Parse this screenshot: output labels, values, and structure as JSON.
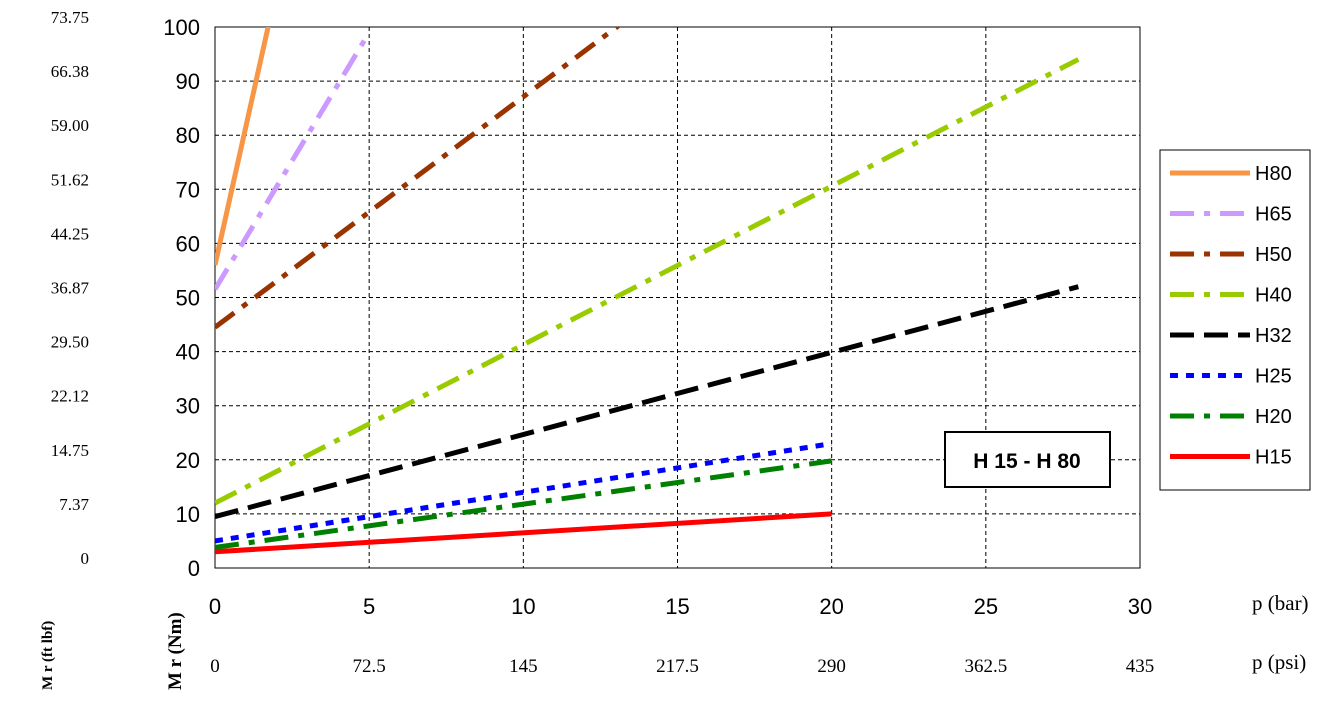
{
  "chart_data": {
    "type": "line",
    "inset_label": "H 15 - H 80",
    "x": {
      "label": "p (bar)",
      "range": [
        0,
        30
      ],
      "ticks": [
        "0",
        "5",
        "10",
        "15",
        "20",
        "25",
        "30"
      ],
      "secondary_label": "p (psi)",
      "secondary_ticks": [
        "0",
        "72.5",
        "145",
        "217.5",
        "290",
        "362.5",
        "435"
      ]
    },
    "y": {
      "label": "M r (Nm)",
      "range": [
        0,
        100
      ],
      "ticks": [
        "0",
        "10",
        "20",
        "30",
        "40",
        "50",
        "60",
        "70",
        "80",
        "90",
        "100"
      ],
      "secondary_label": "M r (ft lbf)",
      "secondary_ticks": [
        "0",
        "7.37",
        "14.75",
        "22.12",
        "29.50",
        "36.87",
        "44.25",
        "51.62",
        "59.00",
        "66.38",
        "73.75"
      ]
    },
    "grid": true,
    "legend_position": "right",
    "series": [
      {
        "name": "H80",
        "color": "#f79646",
        "dash": "solid",
        "x": [
          0,
          1.8
        ],
        "y": [
          56,
          102
        ]
      },
      {
        "name": "H65",
        "color": "#cc99ff",
        "dash": "dashdot",
        "x": [
          0,
          5
        ],
        "y": [
          51.5,
          99
        ]
      },
      {
        "name": "H50",
        "color": "#993300",
        "dash": "dashdot",
        "x": [
          0,
          13.5
        ],
        "y": [
          44.5,
          102
        ]
      },
      {
        "name": "H40",
        "color": "#99cc00",
        "dash": "dashdot",
        "x": [
          0,
          28
        ],
        "y": [
          12,
          94
        ]
      },
      {
        "name": "H32",
        "color": "#000000",
        "dash": "dash",
        "x": [
          0,
          28
        ],
        "y": [
          9.5,
          52
        ]
      },
      {
        "name": "H25",
        "color": "#0000ff",
        "dash": "dot",
        "x": [
          0,
          20
        ],
        "y": [
          5,
          23
        ]
      },
      {
        "name": "H20",
        "color": "#008000",
        "dash": "dashdot",
        "x": [
          0,
          20
        ],
        "y": [
          3.8,
          19.8
        ]
      },
      {
        "name": "H15",
        "color": "#ff0000",
        "dash": "solid",
        "x": [
          0,
          20
        ],
        "y": [
          3,
          10
        ]
      }
    ]
  }
}
